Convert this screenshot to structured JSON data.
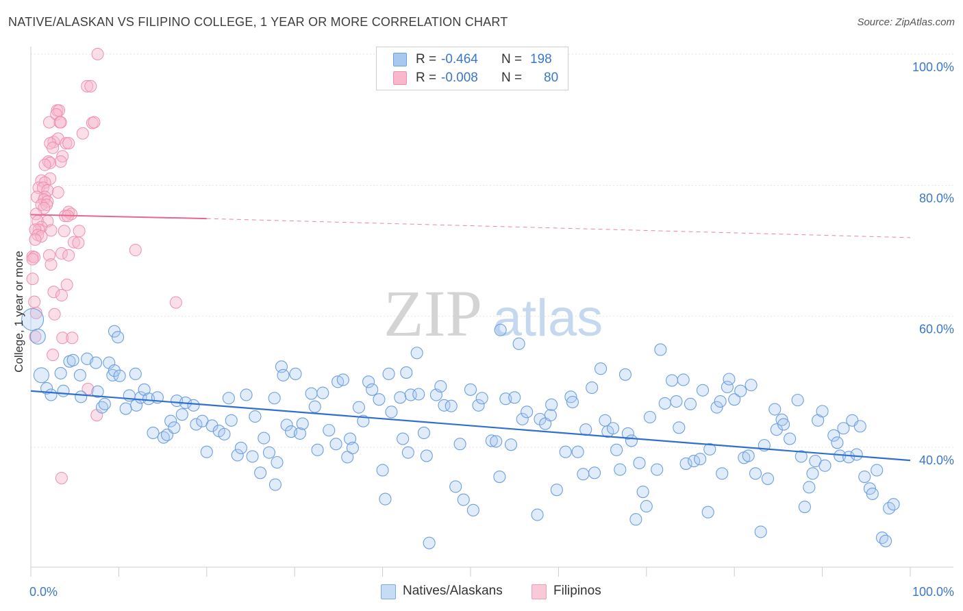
{
  "title": "NATIVE/ALASKAN VS FILIPINO COLLEGE, 1 YEAR OR MORE CORRELATION CHART",
  "source": "Source: ZipAtlas.com",
  "watermark": {
    "zip": "ZIP",
    "atlas": "atlas"
  },
  "legend": {
    "r_label": "R =",
    "n_label": "N =",
    "series": [
      {
        "name": "Natives/Alaskans",
        "r": "-0.464",
        "n": "198",
        "color": "#a9c8f0",
        "stroke": "#6c9fe0"
      },
      {
        "name": "Filipinos",
        "r": "-0.008",
        "n": "80",
        "color": "#f7b8cb",
        "stroke": "#ee8fae"
      }
    ]
  },
  "colors": {
    "blue_line": "#2f6fcf",
    "pink_line": "#e8658e",
    "axis_text": "#3a77c8",
    "grid": "#e3e3e3"
  },
  "chart_data": {
    "type": "scatter",
    "title": "NATIVE/ALASKAN VS FILIPINO COLLEGE, 1 YEAR OR MORE CORRELATION CHART",
    "xlabel": "",
    "ylabel": "College, 1 year or more",
    "xlim": [
      0,
      100
    ],
    "ylim": [
      20,
      102
    ],
    "x_tick_labels": [
      "0.0%",
      "100.0%"
    ],
    "y_ticks": [
      40,
      60,
      80,
      100
    ],
    "y_tick_labels": [
      "40.0%",
      "60.0%",
      "80.0%",
      "100.0%"
    ],
    "series": [
      {
        "name": "Natives/Alaskans",
        "trend": {
          "x": [
            0,
            100
          ],
          "y": [
            48.6,
            38.0
          ]
        },
        "points": [
          [
            0.2,
            59.5
          ],
          [
            0.8,
            56.9
          ],
          [
            1.2,
            51.0
          ],
          [
            1.8,
            49.0
          ],
          [
            2.3,
            48.0
          ],
          [
            3.4,
            51.3
          ],
          [
            3.7,
            48.6
          ],
          [
            4.4,
            53.1
          ],
          [
            4.8,
            53.3
          ],
          [
            5.6,
            51.0
          ],
          [
            5.7,
            47.7
          ],
          [
            6.4,
            53.5
          ],
          [
            7.4,
            52.9
          ],
          [
            7.6,
            48.5
          ],
          [
            8.1,
            46.1
          ],
          [
            8.4,
            46.6
          ],
          [
            8.9,
            52.9
          ],
          [
            9.3,
            51.0
          ],
          [
            9.5,
            51.7
          ],
          [
            10.1,
            50.9
          ],
          [
            9.5,
            57.7
          ],
          [
            9.9,
            56.8
          ],
          [
            10.8,
            45.9
          ],
          [
            11.2,
            47.9
          ],
          [
            11.9,
            51.2
          ],
          [
            12.0,
            46.4
          ],
          [
            12.5,
            47.6
          ],
          [
            12.9,
            48.8
          ],
          [
            13.4,
            47.4
          ],
          [
            13.9,
            42.2
          ],
          [
            14.4,
            47.6
          ],
          [
            15.1,
            41.5
          ],
          [
            15.5,
            41.9
          ],
          [
            15.9,
            44.0
          ],
          [
            16.3,
            43.0
          ],
          [
            16.6,
            47.1
          ],
          [
            17.2,
            45.0
          ],
          [
            17.6,
            46.8
          ],
          [
            18.5,
            46.4
          ],
          [
            18.8,
            43.5
          ],
          [
            19.5,
            44.0
          ],
          [
            20.0,
            39.3
          ],
          [
            20.6,
            43.3
          ],
          [
            21.4,
            42.5
          ],
          [
            22.0,
            42.0
          ],
          [
            22.5,
            47.5
          ],
          [
            22.8,
            44.1
          ],
          [
            23.5,
            38.8
          ],
          [
            23.9,
            39.9
          ],
          [
            24.5,
            48.0
          ],
          [
            25.2,
            38.6
          ],
          [
            25.5,
            44.7
          ],
          [
            26.1,
            36.1
          ],
          [
            26.5,
            41.4
          ],
          [
            27.1,
            39.2
          ],
          [
            27.8,
            34.3
          ],
          [
            27.7,
            47.5
          ],
          [
            28.0,
            37.7
          ],
          [
            28.5,
            52.3
          ],
          [
            28.7,
            51.0
          ],
          [
            29.1,
            43.4
          ],
          [
            29.6,
            42.4
          ],
          [
            30.1,
            51.2
          ],
          [
            30.6,
            42.1
          ],
          [
            30.9,
            43.6
          ],
          [
            31.9,
            48.2
          ],
          [
            32.3,
            46.2
          ],
          [
            32.6,
            39.6
          ],
          [
            33.2,
            48.3
          ],
          [
            33.9,
            42.6
          ],
          [
            34.7,
            40.5
          ],
          [
            34.9,
            50.0
          ],
          [
            35.5,
            50.3
          ],
          [
            36.0,
            38.5
          ],
          [
            36.3,
            41.3
          ],
          [
            36.6,
            39.9
          ],
          [
            37.3,
            46.1
          ],
          [
            37.8,
            44.0
          ],
          [
            38.4,
            50.0
          ],
          [
            38.8,
            48.8
          ],
          [
            39.6,
            47.3
          ],
          [
            40.0,
            36.5
          ],
          [
            40.3,
            32.1
          ],
          [
            40.7,
            51.2
          ],
          [
            41.0,
            45.4
          ],
          [
            42.0,
            47.6
          ],
          [
            42.3,
            41.3
          ],
          [
            42.7,
            51.4
          ],
          [
            42.9,
            39.2
          ],
          [
            43.2,
            48.0
          ],
          [
            43.9,
            54.4
          ],
          [
            44.1,
            48.1
          ],
          [
            44.7,
            42.2
          ],
          [
            45.0,
            38.7
          ],
          [
            45.3,
            25.4
          ],
          [
            46.1,
            48.0
          ],
          [
            46.6,
            49.3
          ],
          [
            47.0,
            46.4
          ],
          [
            47.8,
            46.3
          ],
          [
            48.3,
            34.0
          ],
          [
            48.8,
            40.5
          ],
          [
            49.2,
            32.0
          ],
          [
            50.0,
            48.8
          ],
          [
            50.3,
            30.4
          ],
          [
            50.9,
            46.4
          ],
          [
            51.3,
            47.5
          ],
          [
            52.4,
            41.0
          ],
          [
            52.9,
            40.9
          ],
          [
            53.3,
            35.5
          ],
          [
            53.4,
            57.9
          ],
          [
            54.0,
            47.4
          ],
          [
            54.6,
            40.4
          ],
          [
            55.0,
            47.6
          ],
          [
            55.5,
            55.8
          ],
          [
            55.9,
            44.3
          ],
          [
            56.4,
            45.4
          ],
          [
            57.6,
            29.7
          ],
          [
            57.9,
            44.3
          ],
          [
            58.5,
            43.6
          ],
          [
            59.1,
            44.9
          ],
          [
            59.2,
            46.5
          ],
          [
            59.8,
            33.5
          ],
          [
            60.8,
            39.3
          ],
          [
            61.4,
            47.7
          ],
          [
            61.6,
            46.9
          ],
          [
            62.2,
            39.3
          ],
          [
            62.8,
            35.9
          ],
          [
            63.1,
            42.7
          ],
          [
            63.8,
            49.1
          ],
          [
            64.1,
            36.1
          ],
          [
            64.8,
            52.0
          ],
          [
            65.3,
            44.1
          ],
          [
            65.6,
            42.4
          ],
          [
            66.2,
            42.9
          ],
          [
            66.6,
            39.6
          ],
          [
            67.0,
            36.6
          ],
          [
            67.6,
            51.1
          ],
          [
            67.9,
            42.1
          ],
          [
            68.3,
            41.0
          ],
          [
            68.8,
            29.0
          ],
          [
            69.2,
            37.6
          ],
          [
            69.6,
            33.2
          ],
          [
            70.0,
            31.0
          ],
          [
            70.4,
            44.6
          ],
          [
            71.2,
            36.6
          ],
          [
            71.6,
            54.9
          ],
          [
            72.1,
            46.7
          ],
          [
            72.9,
            50.2
          ],
          [
            73.4,
            47.0
          ],
          [
            73.7,
            43.0
          ],
          [
            74.2,
            50.3
          ],
          [
            74.5,
            37.5
          ],
          [
            75.0,
            46.6
          ],
          [
            75.4,
            37.9
          ],
          [
            76.1,
            38.2
          ],
          [
            76.4,
            48.7
          ],
          [
            77.0,
            30.1
          ],
          [
            77.2,
            39.7
          ],
          [
            78.0,
            46.1
          ],
          [
            78.4,
            47.0
          ],
          [
            78.6,
            36.0
          ],
          [
            79.2,
            49.2
          ],
          [
            79.4,
            50.4
          ],
          [
            80.0,
            47.3
          ],
          [
            80.7,
            48.6
          ],
          [
            81.1,
            38.4
          ],
          [
            81.6,
            38.7
          ],
          [
            81.9,
            49.5
          ],
          [
            82.4,
            36.0
          ],
          [
            83.0,
            27.1
          ],
          [
            83.4,
            40.3
          ],
          [
            83.8,
            35.2
          ],
          [
            84.6,
            45.8
          ],
          [
            84.8,
            42.7
          ],
          [
            85.4,
            44.2
          ],
          [
            85.6,
            43.5
          ],
          [
            86.3,
            41.3
          ],
          [
            87.2,
            47.2
          ],
          [
            87.6,
            38.6
          ],
          [
            88.0,
            30.9
          ],
          [
            88.5,
            33.9
          ],
          [
            88.9,
            36.0
          ],
          [
            89.2,
            37.9
          ],
          [
            89.5,
            44.1
          ],
          [
            90.0,
            45.5
          ],
          [
            90.3,
            37.2
          ],
          [
            91.3,
            41.8
          ],
          [
            91.7,
            40.7
          ],
          [
            92.0,
            38.7
          ],
          [
            92.4,
            42.9
          ],
          [
            93.0,
            38.5
          ],
          [
            93.4,
            44.1
          ],
          [
            93.9,
            38.9
          ],
          [
            94.3,
            43.2
          ],
          [
            94.8,
            35.5
          ],
          [
            95.4,
            33.7
          ],
          [
            95.7,
            32.9
          ],
          [
            96.2,
            36.5
          ],
          [
            96.8,
            26.2
          ],
          [
            97.2,
            25.7
          ],
          [
            97.6,
            30.7
          ],
          [
            98.1,
            31.3
          ]
        ],
        "large_points": [
          [
            0.2,
            59.5
          ],
          [
            0.8,
            56.9
          ],
          [
            1.2,
            51.0
          ]
        ]
      },
      {
        "name": "Filipinos",
        "trend_solid": {
          "x": [
            0,
            20
          ],
          "y": [
            75.5,
            74.9
          ]
        },
        "trend_dashed": {
          "x": [
            20,
            100
          ],
          "y": [
            74.9,
            72.0
          ]
        },
        "points": [
          [
            7.6,
            100.0
          ],
          [
            6.4,
            95.1
          ],
          [
            6.8,
            95.1
          ],
          [
            3.0,
            91.4
          ],
          [
            3.2,
            91.4
          ],
          [
            2.9,
            90.8
          ],
          [
            3.3,
            89.6
          ],
          [
            3.4,
            89.6
          ],
          [
            2.1,
            89.6
          ],
          [
            7.0,
            89.5
          ],
          [
            7.2,
            89.6
          ],
          [
            5.9,
            87.9
          ],
          [
            2.6,
            86.6
          ],
          [
            3.1,
            87.1
          ],
          [
            4.0,
            86.4
          ],
          [
            4.3,
            86.4
          ],
          [
            2.2,
            86.4
          ],
          [
            2.5,
            85.7
          ],
          [
            3.6,
            84.4
          ],
          [
            2.0,
            83.6
          ],
          [
            3.4,
            83.6
          ],
          [
            2.2,
            83.4
          ],
          [
            1.6,
            83.1
          ],
          [
            2.2,
            81.0
          ],
          [
            1.2,
            80.7
          ],
          [
            1.6,
            80.4
          ],
          [
            0.9,
            79.6
          ],
          [
            1.4,
            79.6
          ],
          [
            1.9,
            79.2
          ],
          [
            3.1,
            78.9
          ],
          [
            1.6,
            78.2
          ],
          [
            0.7,
            78.2
          ],
          [
            1.5,
            77.8
          ],
          [
            1.9,
            77.5
          ],
          [
            1.2,
            77.0
          ],
          [
            1.8,
            77.0
          ],
          [
            1.5,
            76.5
          ],
          [
            4.3,
            75.9
          ],
          [
            4.6,
            75.6
          ],
          [
            3.9,
            75.3
          ],
          [
            4.2,
            75.3
          ],
          [
            0.6,
            75.6
          ],
          [
            0.8,
            74.5
          ],
          [
            1.9,
            74.5
          ],
          [
            1.2,
            73.6
          ],
          [
            0.9,
            73.2
          ],
          [
            0.5,
            73.2
          ],
          [
            2.3,
            73.1
          ],
          [
            3.8,
            73.0
          ],
          [
            5.5,
            73.0
          ],
          [
            0.8,
            72.4
          ],
          [
            1.2,
            72.2
          ],
          [
            0.5,
            71.7
          ],
          [
            4.9,
            71.3
          ],
          [
            5.4,
            71.2
          ],
          [
            11.9,
            70.1
          ],
          [
            3.5,
            69.6
          ],
          [
            2.1,
            69.3
          ],
          [
            0.2,
            69.1
          ],
          [
            0.4,
            69.0
          ],
          [
            4.3,
            69.3
          ],
          [
            2.3,
            67.9
          ],
          [
            0.2,
            65.7
          ],
          [
            4.1,
            64.8
          ],
          [
            2.6,
            63.7
          ],
          [
            3.5,
            63.2
          ],
          [
            0.4,
            62.2
          ],
          [
            16.5,
            62.1
          ],
          [
            0.6,
            60.5
          ],
          [
            2.7,
            60.3
          ],
          [
            0.5,
            56.9
          ],
          [
            3.6,
            56.7
          ],
          [
            4.7,
            56.7
          ],
          [
            2.5,
            54.1
          ],
          [
            6.5,
            48.9
          ],
          [
            7.5,
            44.9
          ],
          [
            3.5,
            35.3
          ],
          [
            0.2,
            68.7
          ]
        ]
      }
    ]
  }
}
